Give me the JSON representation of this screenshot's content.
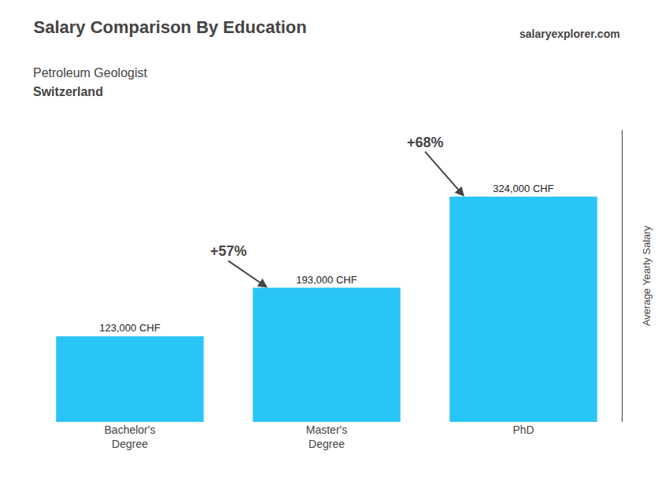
{
  "chart_data": {
    "type": "bar",
    "title": "Salary Comparison By Education",
    "subtitle": [
      "Petroleum Geologist",
      "Switzerland"
    ],
    "source": "salaryexplorer.com",
    "ylabel": "Average Yearly Salary",
    "categories": [
      "Bachelor's\nDegree",
      "Master's\nDegree",
      "PhD"
    ],
    "values": [
      123000,
      193000,
      324000
    ],
    "value_labels": [
      "123,000 CHF",
      "193,000 CHF",
      "324,000 CHF"
    ],
    "data_labels": true,
    "annotations": [
      "+57%",
      "+68%"
    ],
    "color": "#29c5f6",
    "ylim": [
      0,
      420000
    ],
    "tick_labels": "x",
    "grid": false
  }
}
